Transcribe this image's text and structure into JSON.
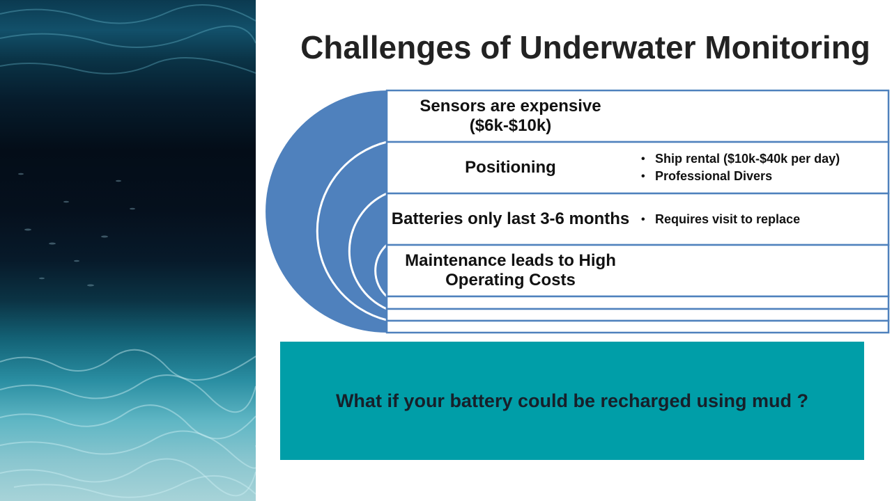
{
  "title": "Challenges of Underwater Monitoring",
  "rows": [
    {
      "label": "Sensors are expensive ($6k-$10k)",
      "bullets": []
    },
    {
      "label": "Positioning",
      "bullets": [
        "Ship rental ($10k-$40k per day)",
        "Professional Divers"
      ]
    },
    {
      "label": "Batteries only last 3-6 months",
      "bullets": [
        "Requires visit to replace"
      ]
    },
    {
      "label": "Maintenance leads to High Operating Costs",
      "bullets": []
    }
  ],
  "callout": {
    "text": "What if your battery could be recharged using mud ?"
  },
  "colors": {
    "diagram_blue": "#4f81bd",
    "callout_teal": "#009ea8",
    "title_text": "#222222"
  },
  "icons": {
    "photo": "underwater-photo"
  }
}
